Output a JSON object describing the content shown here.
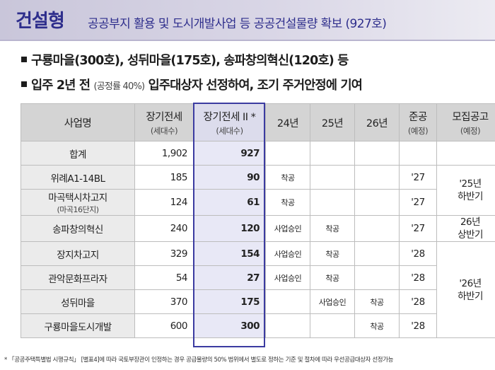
{
  "header": {
    "title": "건설형",
    "subtitle": "공공부지 활용 및 도시개발사업 등 공공건설물량 확보 (927호)"
  },
  "bullets": [
    {
      "text": "구룡마을(300호), 성뒤마을(175호), 송파창의혁신(120호) 등"
    },
    {
      "text_before": "입주 2년 전",
      "note": "(공정률 40%)",
      "text_after": "입주대상자 선정하여, 조기 주거안정에 기여"
    }
  ],
  "table": {
    "headers": {
      "name": "사업명",
      "col_a": {
        "main": "장기전세",
        "sub": "(세대수)"
      },
      "col_b": {
        "main": "장기전세 II *",
        "sub": "(세대수)"
      },
      "y24": "24년",
      "y25": "25년",
      "y26": "26년",
      "completion": {
        "main": "준공",
        "sub": "(예정)"
      },
      "recruit": {
        "main": "모집공고",
        "sub": "(예정)"
      }
    },
    "rows": [
      {
        "name": "합계",
        "name_sub": "",
        "a": "1,902",
        "b": "927",
        "y24": "",
        "y25": "",
        "y26": "",
        "comp": ""
      },
      {
        "name": "위례A1-14BL",
        "name_sub": "",
        "a": "185",
        "b": "90",
        "y24": "착공",
        "y25": "",
        "y26": "",
        "comp": "'27"
      },
      {
        "name": "마곡택시차고지",
        "name_sub": "(마곡16단지)",
        "a": "124",
        "b": "61",
        "y24": "착공",
        "y25": "",
        "y26": "",
        "comp": "'27"
      },
      {
        "name": "송파창의혁신",
        "name_sub": "",
        "a": "240",
        "b": "120",
        "y24": "사업승인",
        "y25": "착공",
        "y26": "",
        "comp": "'27"
      },
      {
        "name": "장지차고지",
        "name_sub": "",
        "a": "329",
        "b": "154",
        "y24": "사업승인",
        "y25": "착공",
        "y26": "",
        "comp": "'28"
      },
      {
        "name": "관악문화프라자",
        "name_sub": "",
        "a": "54",
        "b": "27",
        "y24": "사업승인",
        "y25": "착공",
        "y26": "",
        "comp": "'28"
      },
      {
        "name": "성뒤마을",
        "name_sub": "",
        "a": "370",
        "b": "175",
        "y24": "",
        "y25": "사업승인",
        "y26": "착공",
        "comp": "'28"
      },
      {
        "name": "구룡마을도시개발",
        "name_sub": "",
        "a": "600",
        "b": "300",
        "y24": "",
        "y25": "",
        "y26": "착공",
        "comp": "'28"
      }
    ],
    "recruit_groups": [
      {
        "line1": "'25년",
        "line2": "하반기"
      },
      {
        "line1": "26년",
        "line2": "상반기"
      },
      {
        "line1": "'26년",
        "line2": "하반기"
      }
    ]
  },
  "footnote": "* 「공공주택특별법 시행규칙」 [별표4]에 따라 국토부장관이 인정하는 경우 공급물량의 50% 범위에서 별도로 정하는 기준 및 절차에 따라 우선공급대상자 선정가능"
}
